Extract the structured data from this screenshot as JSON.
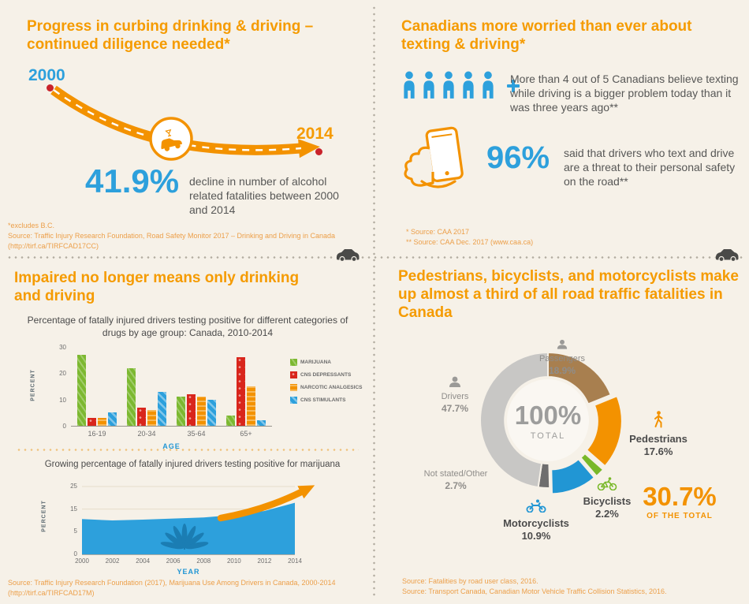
{
  "top_left": {
    "title": "Progress in curbing drinking & driving – continued diligence needed*",
    "year_start": "2000",
    "year_end": "2014",
    "stat": "41.9%",
    "stat_caption": "decline in number of alcohol related fatalities between 2000 and 2014",
    "footnote1": "*excludes B.C.",
    "footnote2": "Source:  Traffic Injury Research Foundation, Road Safety Monitor 2017 – Drinking and Driving in Canada",
    "footnote3": "(http://tirf.ca/TIRFCAD17CC)"
  },
  "top_right": {
    "title": "Canadians more worried than ever about texting & driving*",
    "fact1": "More than 4 out of 5 Canadians believe texting while driving is a bigger problem today than it was three years ago**",
    "stat": "96%",
    "fact2": "said that drivers who text and drive are a threat to their personal safety on the road**",
    "footnote1": "* Source:  CAA 2017",
    "footnote2": "** Source:  CAA Dec. 2017 (www.caa.ca)"
  },
  "bottom_left": {
    "title": "Impaired no longer means only drinking and driving",
    "source1": "Source:  Traffic Injury Research Foundation (2017), Marijuana Use Among Drivers in Canada, 2000-2014",
    "source2": "(http://tirf.ca/TIRFCAD17M)"
  },
  "bottom_right": {
    "title": "Pedestrians, bicyclists, and motorcyclists make up almost a third of all road traffic fatalities in Canada",
    "center_value": "100%",
    "center_label": "TOTAL",
    "highlight_value": "30.7%",
    "highlight_label": "OF THE TOTAL",
    "source1": "Source:  Fatalities by road user class, 2016.",
    "source2": "Source:  Transport Canada, Canadian Motor Vehicle Traffic Collision Statistics, 2016."
  },
  "chart_data": [
    {
      "type": "bar",
      "title": "Percentage of fatally injured drivers testing positive for different categories of drugs by age group: Canada, 2010-2014",
      "xlabel": "AGE",
      "ylabel": "PERCENT",
      "categories": [
        "16-19",
        "20-34",
        "35-64",
        "65+"
      ],
      "series": [
        {
          "name": "MARIJUANA",
          "color": "#7cb830",
          "values": [
            27,
            22,
            11,
            4
          ]
        },
        {
          "name": "CNS DEPRESSANTS",
          "color": "#d9261c",
          "values": [
            3,
            7,
            12,
            26
          ]
        },
        {
          "name": "NARCOTIC ANALGESICS",
          "color": "#f39200",
          "values": [
            3,
            6,
            11,
            15
          ]
        },
        {
          "name": "CNS STIMULANTS",
          "color": "#2da0dc",
          "values": [
            5,
            13,
            10,
            2
          ]
        }
      ],
      "ylim": [
        0,
        30
      ],
      "yticks": [
        0,
        10,
        20,
        30
      ],
      "legend_position": "right"
    },
    {
      "type": "area",
      "title": "Growing percentage of fatally injured drivers testing positive for marijuana",
      "xlabel": "YEAR",
      "ylabel": "PERCENT",
      "x": [
        2000,
        2002,
        2004,
        2006,
        2008,
        2010,
        2012,
        2014
      ],
      "values": [
        13,
        12.5,
        12.8,
        13.2,
        13.6,
        14.5,
        16,
        19
      ],
      "ylim": [
        0,
        25
      ],
      "yticks": [
        0,
        5,
        15,
        25
      ],
      "color": "#2da0dc"
    },
    {
      "type": "pie",
      "title": "Fatalities by road user class, 2016",
      "segments": [
        {
          "label": "Passengers",
          "value": 18.9,
          "display": "18.9%",
          "color": "#a87f4f",
          "exploded": false
        },
        {
          "label": "Pedestrians",
          "value": 17.6,
          "display": "17.6%",
          "color": "#f39200",
          "exploded": true
        },
        {
          "label": "Bicyclists",
          "value": 2.2,
          "display": "2.2%",
          "color": "#79b829",
          "exploded": true
        },
        {
          "label": "Motorcyclists",
          "value": 10.9,
          "display": "10.9%",
          "color": "#2196d4",
          "exploded": true
        },
        {
          "label": "Not stated/Other",
          "value": 2.7,
          "display": "2.7%",
          "color": "#6f6e6e",
          "exploded": false
        },
        {
          "label": "Drivers",
          "value": 47.7,
          "display": "47.7%",
          "color": "#c8c7c5",
          "exploded": false
        }
      ]
    }
  ]
}
